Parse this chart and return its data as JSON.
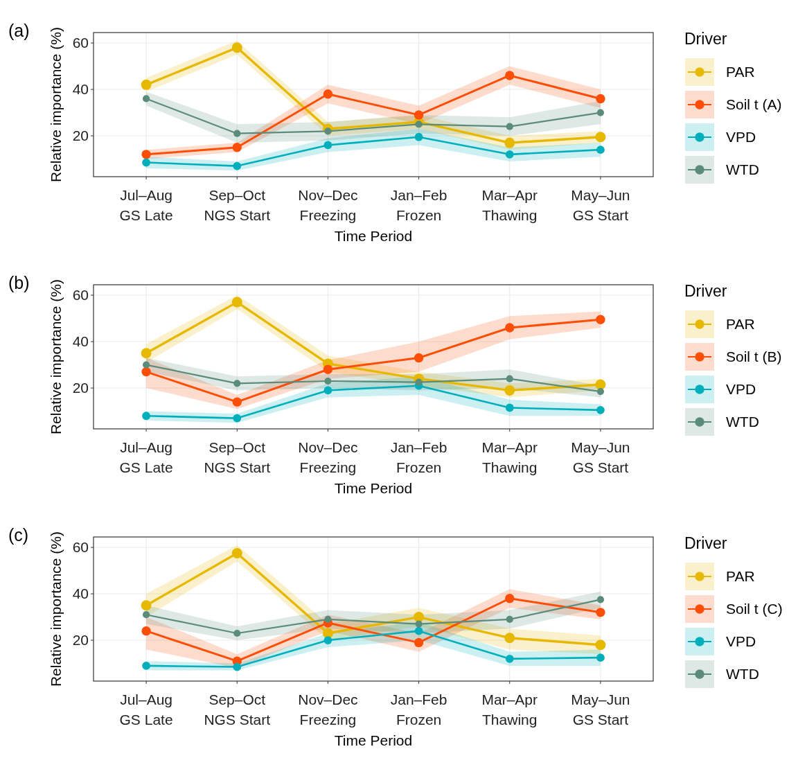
{
  "chart_data": [
    {
      "type": "line",
      "title": "(a)",
      "xlabel": "Time Period",
      "ylabel": "Relative importance (%)",
      "legend_title": "Driver",
      "legend": "right",
      "grid": true,
      "marker": "circle",
      "line_style": "solid",
      "categories": [
        "Jul–Aug\nGS Late",
        "Sep–Oct\nNGS Start",
        "Nov–Dec\nFreezing",
        "Jan–Feb\nFrozen",
        "Mar–Apr\nThawing",
        "May–Jun\nGS Start"
      ],
      "ylim": [
        2.4,
        64.5
      ],
      "yticks": [
        20,
        40,
        60
      ],
      "series": [
        {
          "name": "PAR",
          "color": "#e7b800",
          "values": [
            42,
            58,
            23,
            26,
            17,
            19.5
          ],
          "lower": [
            39,
            55,
            20,
            23,
            14,
            17
          ],
          "upper": [
            45,
            61,
            26,
            29,
            20,
            22
          ]
        },
        {
          "name": "Soil t (A)",
          "color": "#fc4e07",
          "values": [
            12,
            15,
            38,
            29,
            46,
            36
          ],
          "lower": [
            10,
            13,
            34,
            25,
            42,
            32
          ],
          "upper": [
            14,
            17,
            42,
            33,
            50,
            40
          ]
        },
        {
          "name": "VPD",
          "color": "#00afbb",
          "values": [
            8.5,
            7,
            16,
            19.5,
            12,
            14
          ],
          "lower": [
            6,
            5,
            13,
            16,
            9,
            11
          ],
          "upper": [
            11,
            9,
            19,
            23,
            15,
            17
          ]
        },
        {
          "name": "WTD",
          "color": "#5b8c7b",
          "values": [
            36,
            21,
            22,
            25,
            24,
            30
          ],
          "lower": [
            33,
            17,
            18,
            21,
            20,
            25
          ],
          "upper": [
            39,
            25,
            26,
            29,
            28,
            35
          ]
        }
      ]
    },
    {
      "type": "line",
      "title": "(b)",
      "xlabel": "Time Period",
      "ylabel": "Relative importance (%)",
      "legend_title": "Driver",
      "legend": "right",
      "grid": true,
      "marker": "circle",
      "line_style": "solid",
      "categories": [
        "Jul–Aug\nGS Late",
        "Sep–Oct\nNGS Start",
        "Nov–Dec\nFreezing",
        "Jan–Feb\nFrozen",
        "Mar–Apr\nThawing",
        "May–Jun\nGS Start"
      ],
      "ylim": [
        2.4,
        64.5
      ],
      "yticks": [
        20,
        40,
        60
      ],
      "series": [
        {
          "name": "PAR",
          "color": "#e7b800",
          "values": [
            35,
            57,
            30.5,
            24,
            19,
            21.5
          ],
          "lower": [
            31,
            54,
            27,
            21,
            16,
            19
          ],
          "upper": [
            39,
            60,
            34,
            27,
            22,
            24
          ]
        },
        {
          "name": "Soil t (B)",
          "color": "#fc4e07",
          "values": [
            27,
            14,
            28,
            33,
            46,
            49.5
          ],
          "lower": [
            20,
            11,
            24,
            27,
            41,
            46
          ],
          "upper": [
            33,
            17,
            32,
            40,
            51,
            53
          ]
        },
        {
          "name": "VPD",
          "color": "#00afbb",
          "values": [
            8,
            7,
            19,
            21,
            11.5,
            10.5
          ],
          "lower": [
            6,
            5,
            16,
            17,
            8,
            8
          ],
          "upper": [
            10,
            9,
            22,
            25,
            15,
            13
          ]
        },
        {
          "name": "WTD",
          "color": "#5b8c7b",
          "values": [
            30,
            22,
            23,
            22.5,
            24,
            18.5
          ],
          "lower": [
            27,
            19,
            20,
            19,
            20,
            16
          ],
          "upper": [
            33,
            25,
            26,
            26,
            28,
            21
          ]
        }
      ]
    },
    {
      "type": "line",
      "title": "(c)",
      "xlabel": "Time Period",
      "ylabel": "Relative importance (%)",
      "legend_title": "Driver",
      "legend": "right",
      "grid": true,
      "marker": "circle",
      "line_style": "solid",
      "categories": [
        "Jul–Aug\nGS Late",
        "Sep–Oct\nNGS Start",
        "Nov–Dec\nFreezing",
        "Jan–Feb\nFrozen",
        "Mar–Apr\nThawing",
        "May–Jun\nGS Start"
      ],
      "ylim": [
        2.4,
        64.5
      ],
      "yticks": [
        20,
        40,
        60
      ],
      "series": [
        {
          "name": "PAR",
          "color": "#e7b800",
          "values": [
            35,
            57.5,
            23,
            30,
            21,
            18
          ],
          "lower": [
            30,
            54,
            20,
            26,
            16,
            14
          ],
          "upper": [
            40,
            61,
            27,
            34,
            25,
            22
          ]
        },
        {
          "name": "Soil t (C)",
          "color": "#fc4e07",
          "values": [
            24,
            11,
            27.5,
            19,
            38,
            32
          ],
          "lower": [
            16,
            8,
            24,
            15,
            34,
            29
          ],
          "upper": [
            30,
            14,
            31,
            23,
            42,
            35
          ]
        },
        {
          "name": "VPD",
          "color": "#00afbb",
          "values": [
            9,
            8.5,
            20,
            24,
            12,
            12.5
          ],
          "lower": [
            7,
            7,
            17,
            20,
            9,
            9
          ],
          "upper": [
            11,
            10,
            23,
            28,
            15,
            16
          ]
        },
        {
          "name": "WTD",
          "color": "#5b8c7b",
          "values": [
            31,
            23,
            29,
            27,
            29,
            37.5
          ],
          "lower": [
            27,
            20,
            25,
            23,
            25,
            34
          ],
          "upper": [
            35,
            26,
            33,
            31,
            33,
            41
          ]
        }
      ]
    }
  ]
}
